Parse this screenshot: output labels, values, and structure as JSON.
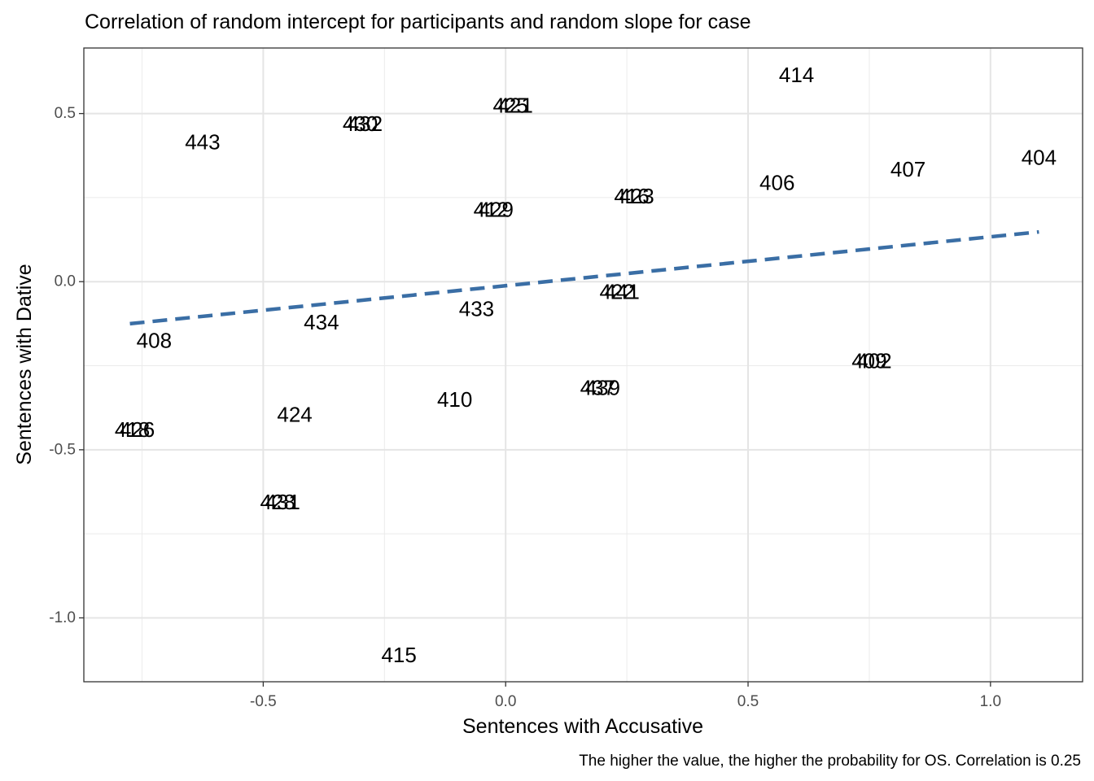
{
  "chart_data": {
    "type": "scatter",
    "title": "Correlation of random intercept for participants and random slope for case",
    "xlabel": "Sentences with Accusative",
    "ylabel": "Sentences with Dative",
    "caption": "The higher the value, the higher the probability for OS. Correlation is  0.25",
    "xlim": [
      -0.87,
      1.19
    ],
    "ylim": [
      -1.19,
      0.695
    ],
    "x_ticks": [
      -0.5,
      0.0,
      0.5,
      1.0
    ],
    "x_tick_labels": [
      "-0.5",
      "0.0",
      "0.5",
      "1.0"
    ],
    "y_ticks": [
      0.5,
      0.0,
      -0.5,
      -1.0
    ],
    "y_tick_labels": [
      "0.5",
      "0.0",
      "-0.5",
      "-1.0"
    ],
    "grid": true,
    "trend_line": {
      "x": [
        -0.775,
        1.1
      ],
      "y": [
        -0.125,
        0.148
      ],
      "color": "#3a6ea5",
      "style": "dashed"
    },
    "points": [
      {
        "label": "414",
        "x": 0.6,
        "y": 0.615
      },
      {
        "label": "425",
        "x": 0.01,
        "y": 0.525
      },
      {
        "label": "421",
        "x": 0.02,
        "y": 0.525
      },
      {
        "label": "430",
        "x": -0.3,
        "y": 0.47
      },
      {
        "label": "432",
        "x": -0.29,
        "y": 0.47
      },
      {
        "label": "443",
        "x": -0.625,
        "y": 0.415
      },
      {
        "label": "404",
        "x": 1.1,
        "y": 0.37
      },
      {
        "label": "407",
        "x": 0.83,
        "y": 0.335
      },
      {
        "label": "406",
        "x": 0.56,
        "y": 0.295
      },
      {
        "label": "416",
        "x": 0.26,
        "y": 0.255
      },
      {
        "label": "423",
        "x": 0.27,
        "y": 0.255
      },
      {
        "label": "412",
        "x": -0.03,
        "y": 0.215
      },
      {
        "label": "429",
        "x": -0.02,
        "y": 0.215
      },
      {
        "label": "422",
        "x": 0.23,
        "y": -0.03
      },
      {
        "label": "441",
        "x": 0.24,
        "y": -0.03
      },
      {
        "label": "433",
        "x": -0.06,
        "y": -0.08
      },
      {
        "label": "434",
        "x": -0.38,
        "y": -0.12
      },
      {
        "label": "408",
        "x": -0.725,
        "y": -0.175
      },
      {
        "label": "409",
        "x": 0.75,
        "y": -0.235
      },
      {
        "label": "402",
        "x": 0.76,
        "y": -0.235
      },
      {
        "label": "437",
        "x": 0.19,
        "y": -0.315
      },
      {
        "label": "439",
        "x": 0.2,
        "y": -0.315
      },
      {
        "label": "410",
        "x": -0.105,
        "y": -0.35
      },
      {
        "label": "424",
        "x": -0.435,
        "y": -0.395
      },
      {
        "label": "418",
        "x": -0.77,
        "y": -0.44
      },
      {
        "label": "426",
        "x": -0.76,
        "y": -0.44
      },
      {
        "label": "428",
        "x": -0.47,
        "y": -0.655
      },
      {
        "label": "431",
        "x": -0.46,
        "y": -0.655
      },
      {
        "label": "415",
        "x": -0.22,
        "y": -1.11
      }
    ]
  }
}
